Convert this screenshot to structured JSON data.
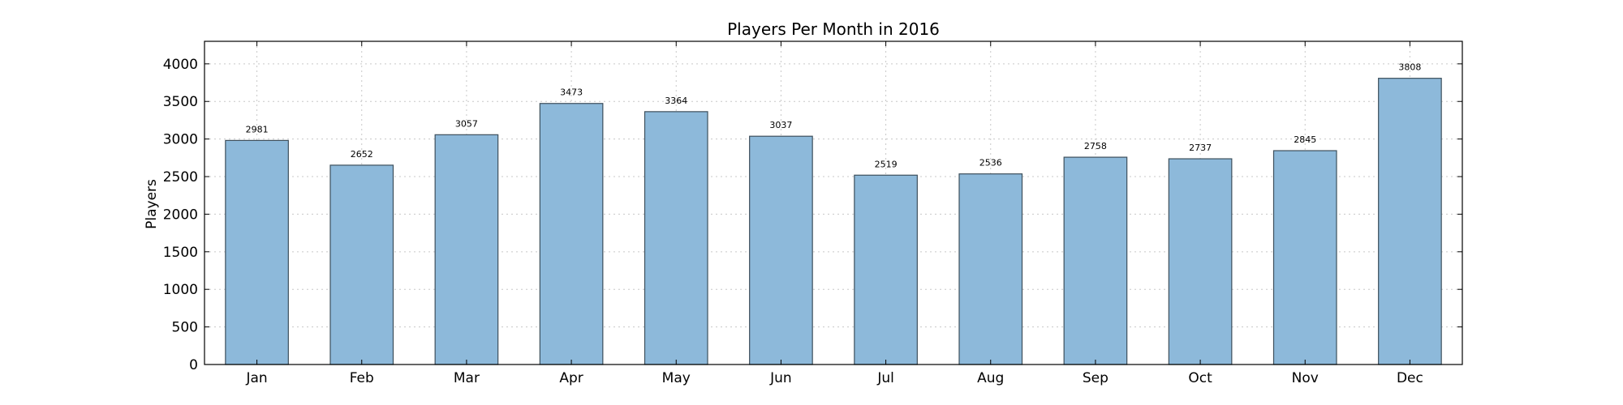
{
  "chart_data": {
    "type": "bar",
    "title": "Players Per Month in 2016",
    "xlabel": "",
    "ylabel": "Players",
    "categories": [
      "Jan",
      "Feb",
      "Mar",
      "Apr",
      "May",
      "Jun",
      "Jul",
      "Aug",
      "Sep",
      "Oct",
      "Nov",
      "Dec"
    ],
    "values": [
      2981,
      2652,
      3057,
      3473,
      3364,
      3037,
      2519,
      2536,
      2758,
      2737,
      2845,
      3808
    ],
    "ylim": [
      0,
      4300
    ],
    "yticks": [
      0,
      500,
      1000,
      1500,
      2000,
      2500,
      3000,
      3500,
      4000
    ],
    "grid": true,
    "bar_color": "#8db9da",
    "bar_edge_color": "#3d4f5c"
  }
}
